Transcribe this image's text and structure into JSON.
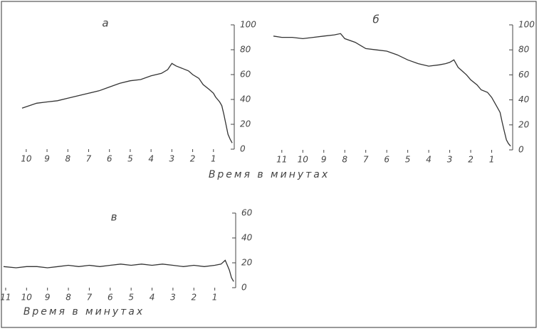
{
  "chart_data": [
    {
      "type": "line",
      "label": "а",
      "xlabel": "Время в минутах",
      "xlim": [
        10.2,
        0
      ],
      "xticks": [
        10,
        9,
        8,
        7,
        6,
        5,
        4,
        3,
        2,
        1
      ],
      "ylim": [
        0,
        100
      ],
      "yticks": [
        0,
        20,
        40,
        60,
        80,
        100
      ],
      "series": [
        {
          "color": "#333333",
          "x": [
            10.2,
            9.5,
            9,
            8.5,
            8,
            7.5,
            7,
            6.5,
            6,
            5.5,
            5,
            4.5,
            4,
            3.5,
            3.2,
            3,
            2.8,
            2.5,
            2.2,
            2,
            1.7,
            1.5,
            1.2,
            1,
            0.9,
            0.8,
            0.7,
            0.6,
            0.5,
            0.4,
            0.3,
            0.2,
            0.1
          ],
          "values": [
            33,
            37,
            38,
            39,
            41,
            43,
            45,
            47,
            50,
            53,
            55,
            56,
            59,
            61,
            64,
            69,
            67,
            65,
            63,
            60,
            57,
            52,
            48,
            45,
            42,
            40,
            38,
            35,
            28,
            20,
            12,
            8,
            5
          ]
        }
      ]
    },
    {
      "type": "line",
      "label": "б",
      "xlim": [
        11.4,
        0
      ],
      "xticks": [
        11,
        10,
        9,
        8,
        7,
        6,
        5,
        4,
        3,
        2,
        1
      ],
      "ylim": [
        0,
        100
      ],
      "yticks": [
        0,
        20,
        40,
        60,
        80,
        100
      ],
      "series": [
        {
          "color": "#333333",
          "x": [
            11.4,
            11,
            10.5,
            10,
            9.5,
            9,
            8.5,
            8.2,
            8,
            7.5,
            7,
            6.5,
            6,
            5.5,
            5,
            4.5,
            4,
            3.5,
            3.2,
            3,
            2.8,
            2.6,
            2.4,
            2.2,
            2,
            1.7,
            1.5,
            1.2,
            1,
            0.8,
            0.6,
            0.5,
            0.4,
            0.3,
            0.2,
            0.1
          ],
          "values": [
            91,
            90,
            90,
            89,
            90,
            91,
            92,
            93,
            89,
            86,
            81,
            80,
            79,
            76,
            72,
            69,
            67,
            68,
            69,
            70,
            72,
            66,
            63,
            60,
            56,
            52,
            48,
            46,
            42,
            36,
            30,
            22,
            15,
            8,
            5,
            3
          ]
        }
      ]
    },
    {
      "type": "line",
      "label": "в",
      "xlabel": "Время в минутах",
      "xlim": [
        11.1,
        0
      ],
      "xticks": [
        11,
        10,
        9,
        8,
        7,
        6,
        5,
        4,
        3,
        2,
        1
      ],
      "ylim": [
        0,
        60
      ],
      "yticks": [
        0,
        20,
        40,
        60
      ],
      "series": [
        {
          "color": "#333333",
          "x": [
            11.1,
            10.5,
            10,
            9.5,
            9,
            8.5,
            8,
            7.5,
            7,
            6.5,
            6,
            5.5,
            5,
            4.5,
            4,
            3.5,
            3,
            2.5,
            2,
            1.5,
            1,
            0.7,
            0.5,
            0.4,
            0.3,
            0.2,
            0.1
          ],
          "values": [
            17,
            16,
            17,
            17,
            16,
            17,
            18,
            17,
            18,
            17,
            18,
            19,
            18,
            19,
            18,
            19,
            18,
            17,
            18,
            17,
            18,
            19,
            22,
            18,
            14,
            8,
            5
          ]
        }
      ]
    }
  ]
}
